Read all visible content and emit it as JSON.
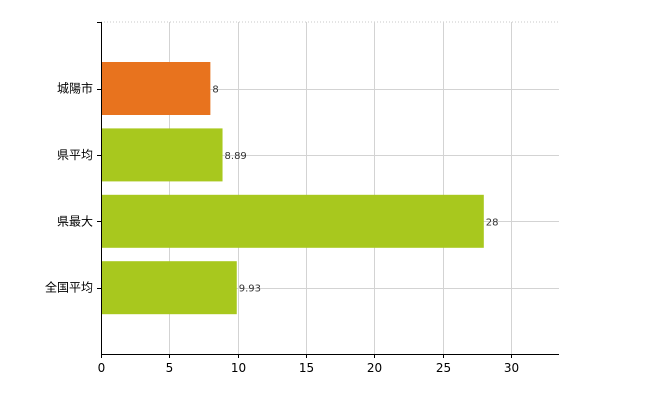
{
  "chart_data": {
    "type": "bar",
    "orientation": "horizontal",
    "categories": [
      "城陽市",
      "県平均",
      "県最大",
      "全国平均"
    ],
    "values": [
      8,
      8.89,
      28,
      9.93
    ],
    "value_labels": [
      "8",
      "8.89",
      "28",
      "9.93"
    ],
    "bar_colors": [
      "#e8731e",
      "#a8c81e",
      "#a8c81e",
      "#a8c81e"
    ],
    "xlim": [
      0,
      33.5
    ],
    "xticks": [
      0,
      5,
      10,
      15,
      20,
      25,
      30
    ],
    "xtick_labels": [
      "0",
      "5",
      "10",
      "15",
      "20",
      "25",
      "30"
    ],
    "grid": true,
    "legend": "none",
    "title": "",
    "xlabel": "",
    "ylabel": ""
  }
}
